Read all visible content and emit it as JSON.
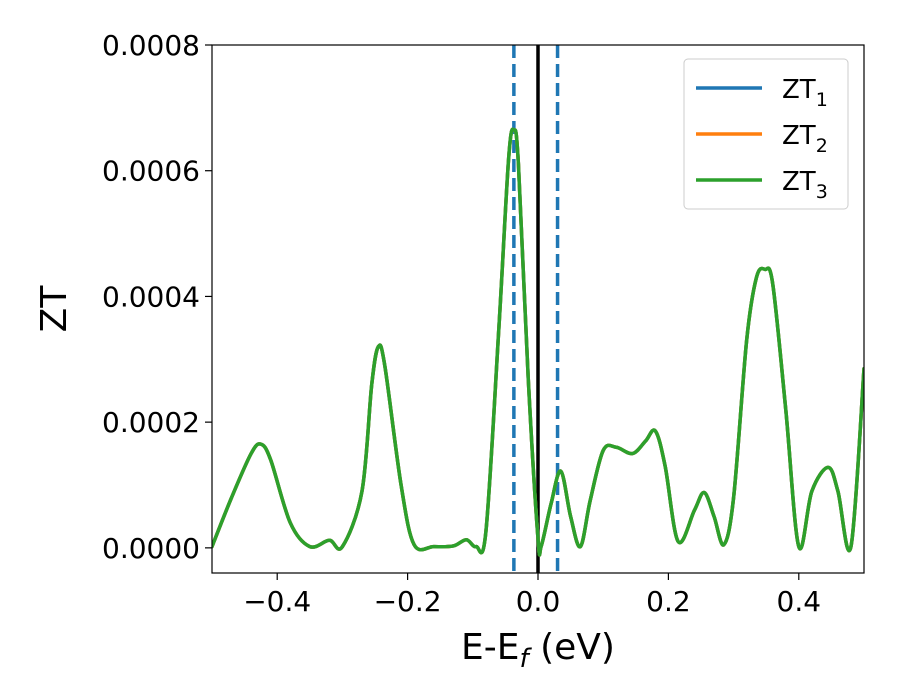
{
  "chart_data": {
    "type": "line",
    "xlabel": "E-E_f (eV)",
    "xlabel_parts": {
      "base": "E-E",
      "sub": "f",
      "suffix": " (eV)"
    },
    "ylabel": "ZT",
    "xlim": [
      -0.5,
      0.5
    ],
    "ylim": [
      -4e-05,
      0.0008
    ],
    "x_ticks": [
      -0.4,
      -0.2,
      0.0,
      0.2,
      0.4
    ],
    "x_tick_labels": [
      "−0.4",
      "−0.2",
      "0.0",
      "0.2",
      "0.4"
    ],
    "y_ticks": [
      0.0,
      0.0002,
      0.0004,
      0.0006,
      0.0008
    ],
    "y_tick_labels": [
      "0.0000",
      "0.0002",
      "0.0004",
      "0.0006",
      "0.0008"
    ],
    "grid": false,
    "legend_position": "top-right",
    "series": [
      {
        "name": "ZT_1",
        "name_base": "ZT",
        "name_sub": "1",
        "color": "#1f77b4",
        "x": [
          -0.5,
          -0.47,
          -0.44,
          -0.425,
          -0.41,
          -0.38,
          -0.35,
          -0.32,
          -0.3,
          -0.27,
          -0.255,
          -0.245,
          -0.235,
          -0.21,
          -0.19,
          -0.16,
          -0.13,
          -0.11,
          -0.095,
          -0.08,
          -0.06,
          -0.045,
          -0.037,
          -0.03,
          -0.015,
          0.0,
          0.005,
          0.02,
          0.035,
          0.05,
          0.065,
          0.08,
          0.1,
          0.12,
          0.145,
          0.165,
          0.18,
          0.195,
          0.215,
          0.24,
          0.255,
          0.27,
          0.285,
          0.3,
          0.32,
          0.335,
          0.348,
          0.36,
          0.38,
          0.4,
          0.42,
          0.445,
          0.46,
          0.48,
          0.5
        ],
        "y": [
          2e-06,
          8e-05,
          0.00015,
          0.000165,
          0.00014,
          4e-05,
          2e-06,
          1.2e-05,
          2e-06,
          9e-05,
          0.00026,
          0.00032,
          0.00029,
          0.0001,
          5e-06,
          2e-06,
          3e-06,
          1.3e-05,
          2e-06,
          2.5e-05,
          0.00035,
          0.00062,
          0.000665,
          0.00061,
          0.00027,
          1.5e-05,
          3e-06,
          7e-05,
          0.000122,
          5e-05,
          2e-06,
          7.5e-05,
          0.000155,
          0.00016,
          0.00015,
          0.00017,
          0.000186,
          0.00013,
          1e-05,
          6e-05,
          8.8e-05,
          5e-05,
          5e-06,
          8e-05,
          0.00033,
          0.00043,
          0.000443,
          0.00042,
          0.00022,
          2e-06,
          9e-05,
          0.000128,
          9e-05,
          2e-06,
          0.000285
        ]
      },
      {
        "name": "ZT_2",
        "name_base": "ZT",
        "name_sub": "2",
        "color": "#ff7f0e",
        "x": [
          -0.5,
          -0.47,
          -0.44,
          -0.425,
          -0.41,
          -0.38,
          -0.35,
          -0.32,
          -0.3,
          -0.27,
          -0.255,
          -0.245,
          -0.235,
          -0.21,
          -0.19,
          -0.16,
          -0.13,
          -0.11,
          -0.095,
          -0.08,
          -0.06,
          -0.045,
          -0.037,
          -0.03,
          -0.015,
          0.0,
          0.005,
          0.02,
          0.035,
          0.05,
          0.065,
          0.08,
          0.1,
          0.12,
          0.145,
          0.165,
          0.18,
          0.195,
          0.215,
          0.24,
          0.255,
          0.27,
          0.285,
          0.3,
          0.32,
          0.335,
          0.348,
          0.36,
          0.38,
          0.4,
          0.42,
          0.445,
          0.46,
          0.48,
          0.5
        ],
        "y": [
          2e-06,
          8e-05,
          0.00015,
          0.000165,
          0.00014,
          4e-05,
          2e-06,
          1.2e-05,
          2e-06,
          9e-05,
          0.00026,
          0.00032,
          0.00029,
          0.0001,
          5e-06,
          2e-06,
          3e-06,
          1.3e-05,
          2e-06,
          2.5e-05,
          0.00035,
          0.00062,
          0.000665,
          0.00061,
          0.00027,
          1.5e-05,
          3e-06,
          7e-05,
          0.000122,
          5e-05,
          2e-06,
          7.5e-05,
          0.000155,
          0.00016,
          0.00015,
          0.00017,
          0.000186,
          0.00013,
          1e-05,
          6e-05,
          8.8e-05,
          5e-05,
          5e-06,
          8e-05,
          0.00033,
          0.00043,
          0.000443,
          0.00042,
          0.00022,
          2e-06,
          9e-05,
          0.000128,
          9e-05,
          2e-06,
          0.000285
        ]
      },
      {
        "name": "ZT_3",
        "name_base": "ZT",
        "name_sub": "3",
        "color": "#2ca02c",
        "x": [
          -0.5,
          -0.47,
          -0.44,
          -0.425,
          -0.41,
          -0.38,
          -0.35,
          -0.32,
          -0.3,
          -0.27,
          -0.255,
          -0.245,
          -0.235,
          -0.21,
          -0.19,
          -0.16,
          -0.13,
          -0.11,
          -0.095,
          -0.08,
          -0.06,
          -0.045,
          -0.037,
          -0.03,
          -0.015,
          0.0,
          0.005,
          0.02,
          0.035,
          0.05,
          0.065,
          0.08,
          0.1,
          0.12,
          0.145,
          0.165,
          0.18,
          0.195,
          0.215,
          0.24,
          0.255,
          0.27,
          0.285,
          0.3,
          0.32,
          0.335,
          0.348,
          0.36,
          0.38,
          0.4,
          0.42,
          0.445,
          0.46,
          0.48,
          0.5
        ],
        "y": [
          2e-06,
          8e-05,
          0.00015,
          0.000165,
          0.00014,
          4e-05,
          2e-06,
          1.2e-05,
          2e-06,
          9e-05,
          0.00026,
          0.00032,
          0.00029,
          0.0001,
          5e-06,
          2e-06,
          3e-06,
          1.3e-05,
          2e-06,
          2.5e-05,
          0.00035,
          0.00062,
          0.000665,
          0.00061,
          0.00027,
          1.5e-05,
          3e-06,
          7e-05,
          0.000122,
          5e-05,
          2e-06,
          7.5e-05,
          0.000155,
          0.00016,
          0.00015,
          0.00017,
          0.000186,
          0.00013,
          1e-05,
          6e-05,
          8.8e-05,
          5e-05,
          5e-06,
          8e-05,
          0.00033,
          0.00043,
          0.000443,
          0.00042,
          0.00022,
          2e-06,
          9e-05,
          0.000128,
          9e-05,
          2e-06,
          0.000285
        ]
      }
    ],
    "reference_lines": [
      {
        "x": -0.037,
        "style": "dashed",
        "color": "#1f77b4"
      },
      {
        "x": 0.0,
        "style": "solid",
        "color": "#000000"
      },
      {
        "x": 0.03,
        "style": "dashed",
        "color": "#1f77b4"
      }
    ]
  }
}
